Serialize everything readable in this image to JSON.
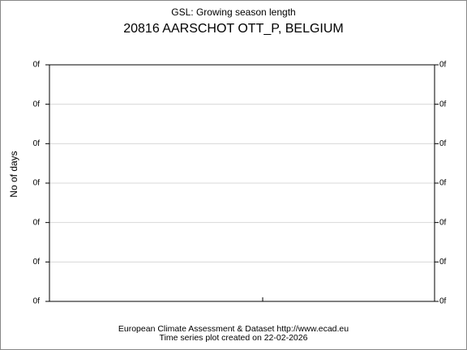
{
  "chart_data": {
    "type": "line",
    "title": "GSL: Growing season length",
    "subtitle": "20816 AARSCHOT OTT_P, BELGIUM",
    "y_label": "No of days",
    "footer": [
      "European Climate Assessment & Dataset  http://www.ecad.eu",
      "Time series plot created on 22-02-2026"
    ],
    "ylim": [
      0,
      6
    ],
    "yticks": [
      {
        "value": 0,
        "label": "0f"
      },
      {
        "value": 1,
        "label": "0f"
      },
      {
        "value": 2,
        "label": "0f"
      },
      {
        "value": 3,
        "label": "0f"
      },
      {
        "value": 4,
        "label": "0f"
      },
      {
        "value": 5,
        "label": "0f"
      },
      {
        "value": 6,
        "label": "0f"
      }
    ],
    "grid": true
  }
}
